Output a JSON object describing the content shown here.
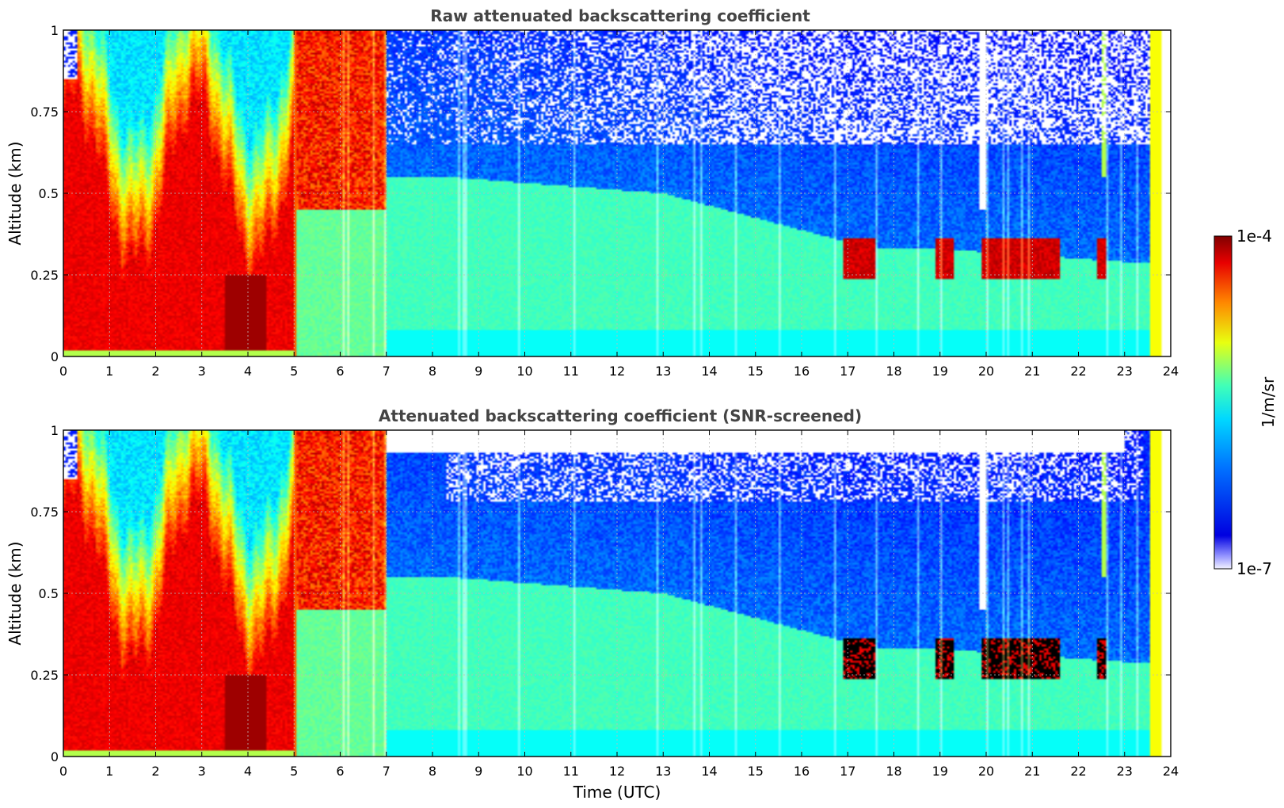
{
  "chart_data": [
    {
      "type": "heatmap",
      "title": "Raw attenuated backscattering coefficient",
      "xlabel": "",
      "ylabel": "Altitude (km)",
      "xlim": [
        0,
        24
      ],
      "ylim": [
        0,
        1
      ],
      "x_ticks": [
        "0",
        "1",
        "2",
        "3",
        "4",
        "5",
        "6",
        "7",
        "8",
        "9",
        "10",
        "11",
        "12",
        "13",
        "14",
        "15",
        "16",
        "17",
        "18",
        "19",
        "20",
        "21",
        "22",
        "23",
        "24"
      ],
      "y_ticks": [
        "0",
        "0.25",
        "0.5",
        "0.75",
        "1"
      ],
      "grid": true,
      "screened": false
    },
    {
      "type": "heatmap",
      "title": "Attenuated backscattering coefficient (SNR-screened)",
      "xlabel": "Time (UTC)",
      "ylabel": "Altitude (km)",
      "xlim": [
        0,
        24
      ],
      "ylim": [
        0,
        1
      ],
      "x_ticks": [
        "0",
        "1",
        "2",
        "3",
        "4",
        "5",
        "6",
        "7",
        "8",
        "9",
        "10",
        "11",
        "12",
        "13",
        "14",
        "15",
        "16",
        "17",
        "18",
        "19",
        "20",
        "21",
        "22",
        "23",
        "24"
      ],
      "y_ticks": [
        "0",
        "0.25",
        "0.5",
        "0.75",
        "1"
      ],
      "grid": true,
      "screened": true
    }
  ],
  "colorbar": {
    "max_label": "1e-4",
    "min_label": "1e-7",
    "units": "1/m/sr",
    "log_min": -7,
    "log_max": -4,
    "colormap": "jet",
    "low_color": "#f2f2ff"
  }
}
